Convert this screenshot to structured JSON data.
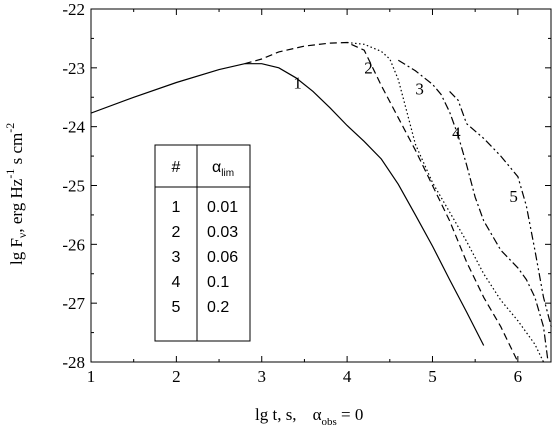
{
  "chart_data": {
    "type": "line",
    "xlabel": {
      "main": "lg t, s,",
      "alpha": "α",
      "alpha_sub": "obs",
      "suffix": " = 0"
    },
    "ylabel": {
      "main": "lg F",
      "nu": "ν",
      "unit1": ", erg Hz",
      "exp1": "-1",
      "unit2": " s",
      "unit3": " cm",
      "exp2": "-2"
    },
    "xlim": [
      1,
      6.4
    ],
    "ylim": [
      -28,
      -22
    ],
    "x_ticks": [
      1,
      2,
      3,
      4,
      5,
      6
    ],
    "y_ticks": [
      -22,
      -23,
      -24,
      -25,
      -26,
      -27,
      -28
    ],
    "grid": false,
    "series": [
      {
        "name": "1",
        "style": "solid",
        "x": [
          1.0,
          1.5,
          2.0,
          2.5,
          2.8,
          3.0,
          3.2,
          3.4,
          3.6,
          3.8,
          4.0,
          4.2,
          4.4,
          4.6,
          4.8,
          5.0,
          5.2,
          5.4,
          5.6
        ],
        "y": [
          -23.77,
          -23.5,
          -23.25,
          -23.03,
          -22.93,
          -22.93,
          -23.0,
          -23.17,
          -23.4,
          -23.68,
          -23.98,
          -24.25,
          -24.55,
          -24.98,
          -25.5,
          -26.03,
          -26.6,
          -27.15,
          -27.72
        ]
      },
      {
        "name": "2",
        "style": "dashed",
        "x": [
          2.8,
          3.0,
          3.2,
          3.5,
          3.8,
          4.0,
          4.2,
          4.4,
          4.6,
          4.8,
          5.0,
          5.2,
          5.4,
          5.6,
          5.8,
          6.0
        ],
        "y": [
          -22.93,
          -22.85,
          -22.73,
          -22.63,
          -22.58,
          -22.57,
          -22.7,
          -23.3,
          -23.85,
          -24.4,
          -25.0,
          -25.6,
          -26.3,
          -26.9,
          -27.4,
          -28.0
        ]
      },
      {
        "name": "3",
        "style": "dotted",
        "x": [
          4.0,
          4.2,
          4.4,
          4.5,
          4.6,
          4.7,
          4.8,
          5.0,
          5.2,
          5.4,
          5.6,
          5.8,
          6.0,
          6.2,
          6.3
        ],
        "y": [
          -22.57,
          -22.6,
          -22.72,
          -22.85,
          -23.2,
          -23.75,
          -24.3,
          -24.95,
          -25.45,
          -25.95,
          -26.5,
          -26.95,
          -27.3,
          -27.7,
          -28.0
        ]
      },
      {
        "name": "4",
        "style": "dashdot",
        "x": [
          4.6,
          4.8,
          5.0,
          5.1,
          5.2,
          5.3,
          5.4,
          5.5,
          5.6,
          5.8,
          6.0,
          6.1,
          6.2,
          6.3,
          6.35
        ],
        "y": [
          -22.87,
          -23.05,
          -23.28,
          -23.45,
          -23.75,
          -24.15,
          -24.65,
          -25.2,
          -25.6,
          -26.1,
          -26.4,
          -26.6,
          -26.9,
          -27.4,
          -27.95
        ]
      },
      {
        "name": "5",
        "style": "dashdotdot",
        "x": [
          5.2,
          5.3,
          5.4,
          5.6,
          5.8,
          6.0,
          6.1,
          6.2,
          6.3,
          6.4
        ],
        "y": [
          -23.4,
          -23.55,
          -23.95,
          -24.2,
          -24.5,
          -24.85,
          -25.35,
          -26.1,
          -26.9,
          -27.45
        ]
      }
    ],
    "curve_labels": [
      {
        "text": "1",
        "x": 3.42,
        "y": -23.35
      },
      {
        "text": "2",
        "x": 4.25,
        "y": -23.1
      },
      {
        "text": "3",
        "x": 4.85,
        "y": -23.45
      },
      {
        "text": "4",
        "x": 5.28,
        "y": -24.2
      },
      {
        "text": "5",
        "x": 5.95,
        "y": -25.28
      }
    ],
    "table": {
      "header": [
        "#",
        "α",
        "lim"
      ],
      "rows": [
        [
          "1",
          "0.01"
        ],
        [
          "2",
          "0.03"
        ],
        [
          "3",
          "0.06"
        ],
        [
          "4",
          "0.1"
        ],
        [
          "5",
          "0.2"
        ]
      ]
    }
  }
}
